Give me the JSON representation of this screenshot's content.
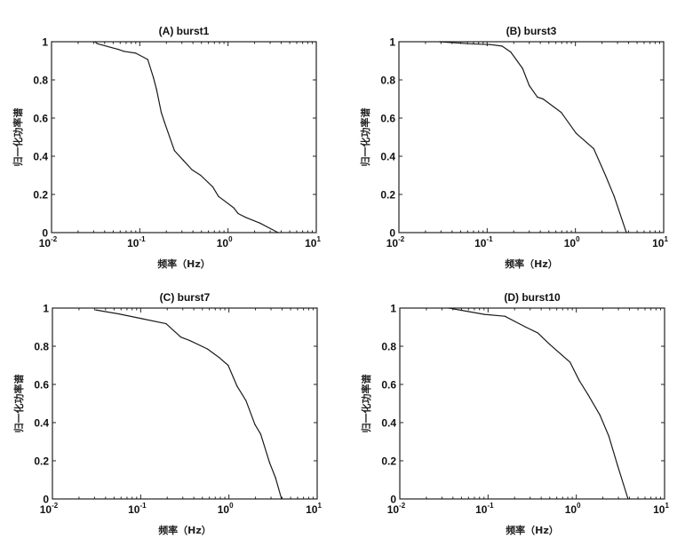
{
  "chart_data": [
    {
      "type": "line",
      "title": "(A) burst1",
      "xlabel": "频率（Hz）",
      "ylabel": "归一化功率谱",
      "xscale": "log",
      "xlim": [
        0.01,
        10
      ],
      "ylim": [
        0,
        1
      ],
      "xticks": [
        {
          "base": "10",
          "exp": "-2"
        },
        {
          "base": "10",
          "exp": "-1"
        },
        {
          "base": "10",
          "exp": "0"
        },
        {
          "base": "10",
          "exp": "1"
        }
      ],
      "yticks": [
        "0",
        "0.2",
        "0.4",
        "0.6",
        "0.8",
        "1"
      ],
      "grid": false,
      "line_color": "#1a1a1a",
      "x": [
        0.031,
        0.033,
        0.057,
        0.066,
        0.09,
        0.123,
        0.143,
        0.155,
        0.175,
        0.19,
        0.247,
        0.31,
        0.39,
        0.49,
        0.67,
        0.78,
        1.16,
        1.3,
        1.58,
        2.3,
        3.69
      ],
      "y": [
        1.0,
        0.99,
        0.96,
        0.95,
        0.94,
        0.907,
        0.81,
        0.75,
        0.63,
        0.58,
        0.43,
        0.38,
        0.33,
        0.3,
        0.24,
        0.19,
        0.13,
        0.1,
        0.08,
        0.05,
        0.0
      ]
    },
    {
      "type": "line",
      "title": "(B) burst3",
      "xlabel": "频率（Hz）",
      "ylabel": "归一化功率谱",
      "xscale": "log",
      "xlim": [
        0.01,
        10
      ],
      "ylim": [
        0,
        1
      ],
      "xticks": [
        {
          "base": "10",
          "exp": "-2"
        },
        {
          "base": "10",
          "exp": "-1"
        },
        {
          "base": "10",
          "exp": "0"
        },
        {
          "base": "10",
          "exp": "1"
        }
      ],
      "yticks": [
        "0",
        "0.2",
        "0.4",
        "0.6",
        "0.8",
        "1"
      ],
      "grid": false,
      "line_color": "#1a1a1a",
      "x": [
        0.029,
        0.06,
        0.108,
        0.147,
        0.185,
        0.252,
        0.3,
        0.37,
        0.43,
        0.69,
        1.02,
        1.61,
        2.19,
        2.75,
        3.78
      ],
      "y": [
        1.0,
        0.99,
        0.985,
        0.977,
        0.946,
        0.86,
        0.77,
        0.71,
        0.7,
        0.63,
        0.52,
        0.44,
        0.3,
        0.19,
        0.0
      ]
    },
    {
      "type": "line",
      "title": "(C) burst7",
      "xlabel": "频率（Hz）",
      "ylabel": "归一化功率谱",
      "xscale": "log",
      "xlim": [
        0.01,
        10
      ],
      "ylim": [
        0,
        1
      ],
      "xticks": [
        {
          "base": "10",
          "exp": "-2"
        },
        {
          "base": "10",
          "exp": "-1"
        },
        {
          "base": "10",
          "exp": "0"
        },
        {
          "base": "10",
          "exp": "1"
        }
      ],
      "yticks": [
        "0",
        "0.2",
        "0.4",
        "0.6",
        "0.8",
        "1"
      ],
      "grid": false,
      "line_color": "#1a1a1a",
      "x": [
        0.031,
        0.056,
        0.104,
        0.194,
        0.285,
        0.36,
        0.57,
        0.78,
        0.98,
        1.24,
        1.56,
        1.97,
        2.29,
        2.89,
        3.38,
        3.95
      ],
      "y": [
        0.99,
        0.97,
        0.944,
        0.918,
        0.848,
        0.83,
        0.786,
        0.74,
        0.7,
        0.59,
        0.515,
        0.39,
        0.34,
        0.19,
        0.11,
        0.0
      ]
    },
    {
      "type": "line",
      "title": "(D) burst10",
      "xlabel": "频率（Hz）",
      "ylabel": "归一化功率谱",
      "xscale": "log",
      "xlim": [
        0.01,
        10
      ],
      "ylim": [
        0,
        1
      ],
      "xticks": [
        {
          "base": "10",
          "exp": "-2"
        },
        {
          "base": "10",
          "exp": "-1"
        },
        {
          "base": "10",
          "exp": "0"
        },
        {
          "base": "10",
          "exp": "1"
        }
      ],
      "yticks": [
        "0",
        "0.2",
        "0.4",
        "0.6",
        "0.8",
        "1"
      ],
      "grid": false,
      "line_color": "#1a1a1a",
      "x": [
        0.036,
        0.091,
        0.155,
        0.268,
        0.365,
        0.5,
        0.85,
        1.08,
        1.36,
        1.85,
        2.33,
        2.94,
        3.86
      ],
      "y": [
        1.0,
        0.967,
        0.957,
        0.9,
        0.87,
        0.81,
        0.716,
        0.62,
        0.546,
        0.44,
        0.33,
        0.174,
        0.0
      ]
    }
  ]
}
